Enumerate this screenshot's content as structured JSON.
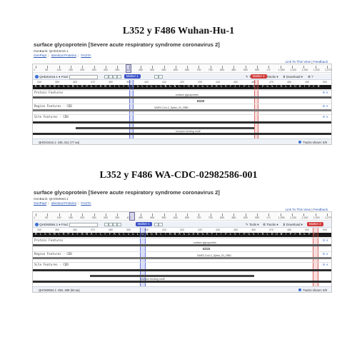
{
  "panels": [
    {
      "heading": "L352 y F486 Wuhan-Hu-1",
      "protein_title": "surface glycoprotein [Severe acute respiratory syndrome coronavirus 2]",
      "genbank": "GenBank: QHD43416.1",
      "links": [
        "GenPept",
        "Identical Proteins",
        "FASTA"
      ],
      "toplinks": [
        "Link To This View",
        "Feedback"
      ],
      "ruler_ticks": [
        "1",
        "50",
        "100",
        "150",
        "200",
        "250",
        "300",
        "350",
        "400",
        "450",
        "500",
        "550",
        "600",
        "650",
        "700",
        "750",
        "800",
        "850",
        "900",
        "950",
        "1 K",
        "1,050",
        "1,100",
        "1,150",
        "1,200",
        "1,273"
      ],
      "toolbar": {
        "seq_id": "QHD43416.1",
        "find_label": "Find:",
        "tools_label": "Tools",
        "tracks_label": "Tracks",
        "download_label": "Download"
      },
      "scale2": [
        "340",
        "350",
        "360",
        "370",
        "380",
        "390",
        "400",
        "410",
        "420",
        "430",
        "440",
        "450",
        "460",
        "470",
        "480",
        "490",
        "500"
      ],
      "sequence": "K N N R N L S G N C R P E F R N A T C F F K S C I E L G N G N C T R N A G S A R S A Y I T P I S T P G S T K L R D W T P F N",
      "tracks": [
        {
          "name": "Protein Features",
          "feature_label": "surface glycoprotein"
        },
        {
          "name": "Region Features - CDD",
          "feature_label": "SARS-CoV-2_Spike_S1_RBD"
        },
        {
          "name": "Site Features - CDD",
          "feature_label": ""
        }
      ],
      "bottom_feature_label": "receptor binding motif",
      "markers": [
        {
          "label": "Marker 1"
        },
        {
          "label": "Marker 2"
        }
      ],
      "status_left": "QHD43416.1: 435..511 (77 aa)",
      "status_right": "Tracks shown: 6/9"
    },
    {
      "heading": "L352 y F486 WA-CDC-02982586-001",
      "protein_title": "surface glycoprotein [Severe acute respiratory syndrome coronavirus 2]",
      "genbank": "GenBank: QHO60594.1",
      "links": [
        "GenPept",
        "Identical Proteins",
        "FASTA"
      ],
      "toplinks": [
        "Link To This View",
        "Feedback"
      ],
      "ruler_ticks": [
        "1",
        "50",
        "100",
        "150",
        "200",
        "250",
        "300",
        "350",
        "400",
        "450",
        "500",
        "550",
        "600",
        "650",
        "700",
        "750",
        "800",
        "850",
        "900",
        "950",
        "1 K",
        "1,050",
        "1,100",
        "1,150",
        "1,200",
        "1,273"
      ],
      "toolbar": {
        "seq_id": "QHO60594.1",
        "find_label": "Find:",
        "tools_label": "Tools",
        "tracks_label": "Tracks",
        "download_label": "Download"
      },
      "scale2": [
        "340",
        "350",
        "360",
        "370",
        "380",
        "390",
        "400",
        "410",
        "420",
        "430",
        "440",
        "450",
        "460",
        "470",
        "480",
        "490",
        "500"
      ],
      "sequence": "N L S G N C R P E F R N A T C F F K S C I E L G N G N C T R N A G S A R S A Y I T P I S T P G S T K L R D W T P F N E P F",
      "tracks": [
        {
          "name": "Protein Features",
          "feature_label": "surface glycoprotein"
        },
        {
          "name": "Region Features - CDD",
          "feature_label": "SARS-CoV-2_Spike_S1_RBD"
        },
        {
          "name": "Site Features - CDD",
          "feature_label": ""
        }
      ],
      "bottom_feature_label": "receptor binding motif",
      "markers": [
        {
          "label": "Marker 1"
        },
        {
          "label": "Marker 2"
        }
      ],
      "status_left": "QHO60594.1: 450..499 (50 aa)",
      "status_right": "Tracks shown: 6/9"
    }
  ]
}
